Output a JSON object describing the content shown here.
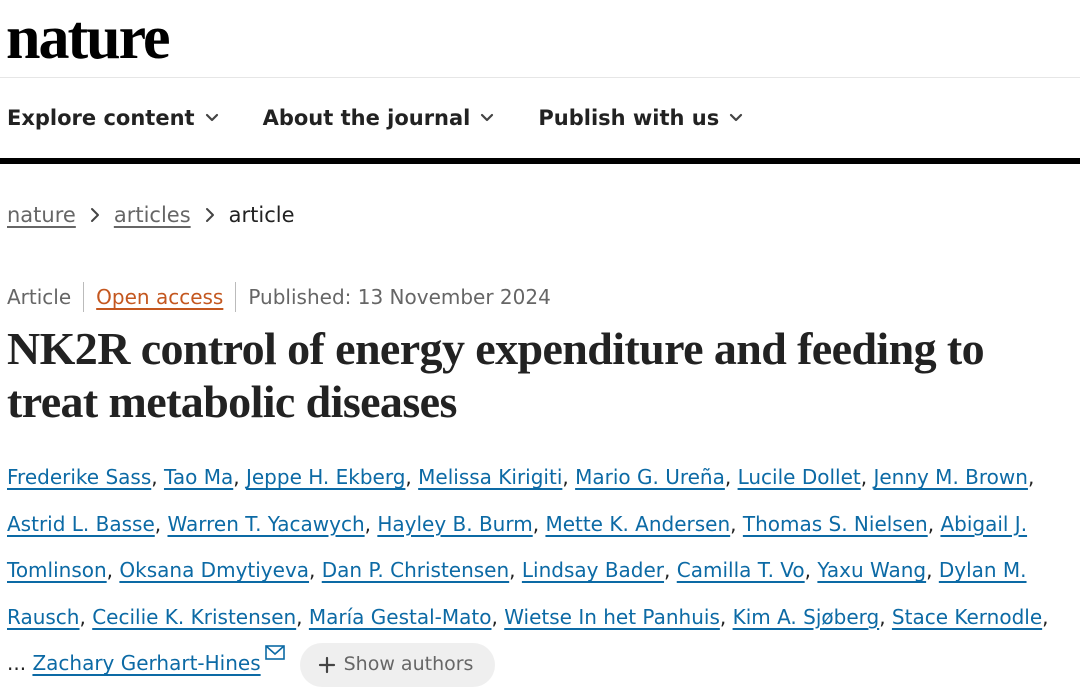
{
  "header": {
    "logo": "nature"
  },
  "nav": [
    "Explore content",
    "About the journal",
    "Publish with us"
  ],
  "breadcrumbs": [
    "nature",
    "articles",
    "article"
  ],
  "meta": {
    "type": "Article",
    "access": "Open access",
    "published": "Published: 13 November 2024"
  },
  "title": "NK2R control of energy expenditure and feeding to treat metabolic diseases",
  "authors": [
    "Frederike Sass",
    "Tao Ma",
    "Jeppe H. Ekberg",
    "Melissa Kirigiti",
    "Mario G. Ureña",
    "Lucile Dollet",
    "Jenny M. Brown",
    "Astrid L. Basse",
    "Warren T. Yacawych",
    "Hayley B. Burm",
    "Mette K. Andersen",
    "Thomas S. Nielsen",
    "Abigail J. Tomlinson",
    "Oksana Dmytiyeva",
    "Dan P. Christensen",
    "Lindsay Bader",
    "Camilla T. Vo",
    "Yaxu Wang",
    "Dylan M. Rausch",
    "Cecilie K. Kristensen",
    "María Gestal-Mato",
    "Wietse In het Panhuis",
    "Kim A. Sjøberg",
    "Stace Kernodle"
  ],
  "separator": ",",
  "truncation": "...",
  "last_author": "Zachary Gerhart-Hines",
  "show_authors": "Show authors"
}
